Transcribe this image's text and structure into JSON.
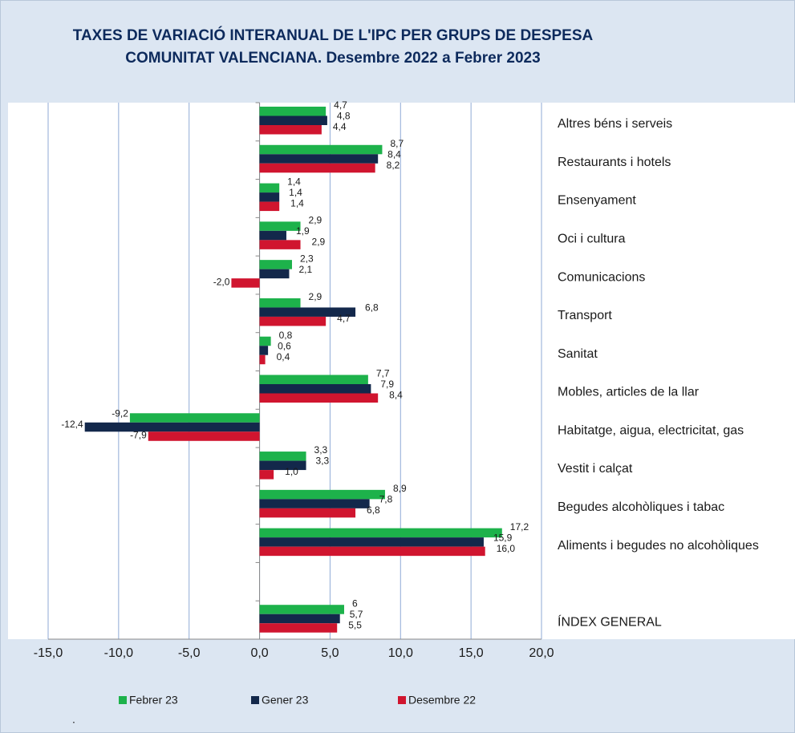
{
  "chart_data": {
    "type": "hbar",
    "title_lines": [
      "TAXES DE VARIACIÓ INTERANUAL DE L'IPC PER GRUPS DE DESPESA",
      "COMUNITAT VALENCIANA. Desembre 2022 a Febrer 2023"
    ],
    "categories": [
      "Altres béns i serveis",
      "Restaurants i hotels",
      "Ensenyament",
      "Oci i cultura",
      "Comunicacions",
      "Transport",
      "Sanitat",
      "Mobles, articles de la llar",
      "Habitatge, aigua, electricitat, gas",
      "Vestit i calçat",
      "Begudes alcohòliques i tabac",
      "Aliments i begudes no alcohòliques",
      null,
      "ÍNDEX GENERAL"
    ],
    "series": [
      {
        "name": "Febrer 23",
        "color": "#1db24b",
        "values": [
          4.7,
          8.7,
          1.4,
          2.9,
          2.3,
          2.9,
          0.8,
          7.7,
          -9.2,
          3.3,
          8.9,
          17.2,
          null,
          6
        ],
        "value_labels": [
          "4,7",
          "8,7",
          "1,4",
          "2,9",
          "2,3",
          "2,9",
          "0,8",
          "7,7",
          "-9,2",
          "3,3",
          "8,9",
          "17,2",
          null,
          "6"
        ]
      },
      {
        "name": "Gener 23",
        "color": "#13284b",
        "values": [
          4.8,
          8.4,
          1.4,
          1.9,
          2.1,
          6.8,
          0.6,
          7.9,
          -12.4,
          3.3,
          7.8,
          15.9,
          null,
          5.7
        ],
        "value_labels": [
          "4,8",
          "8,4",
          "1,4",
          "1,9",
          "2,1",
          "6,8",
          "0,6",
          "7,9",
          "-12,4",
          "3,3",
          "7,8",
          "15,9",
          null,
          "5,7"
        ]
      },
      {
        "name": "Desembre 22",
        "color": "#d0152f",
        "values": [
          4.4,
          8.2,
          1.4,
          2.9,
          -2.0,
          4.7,
          0.4,
          8.4,
          -7.9,
          1.0,
          6.8,
          16.0,
          null,
          5.5
        ],
        "value_labels": [
          "4,4",
          "8,2",
          "1,4",
          "2,9",
          "-2,0",
          "4,7",
          "0,4",
          "8,4",
          "-7,9",
          "1,0",
          "6,8",
          "16,0",
          null,
          "5,5"
        ]
      }
    ],
    "xlim": [
      -15,
      20
    ],
    "xticks": [
      {
        "value": -15,
        "label": "-15,0"
      },
      {
        "value": -10,
        "label": "-10,0"
      },
      {
        "value": -5,
        "label": "-5,0"
      },
      {
        "value": 0,
        "label": "0,0"
      },
      {
        "value": 5,
        "label": "5,0"
      },
      {
        "value": 10,
        "label": "10,0"
      },
      {
        "value": 15,
        "label": "15,0"
      },
      {
        "value": 20,
        "label": "20,0"
      }
    ],
    "grid": true,
    "legend": "bottom",
    "note": "."
  }
}
